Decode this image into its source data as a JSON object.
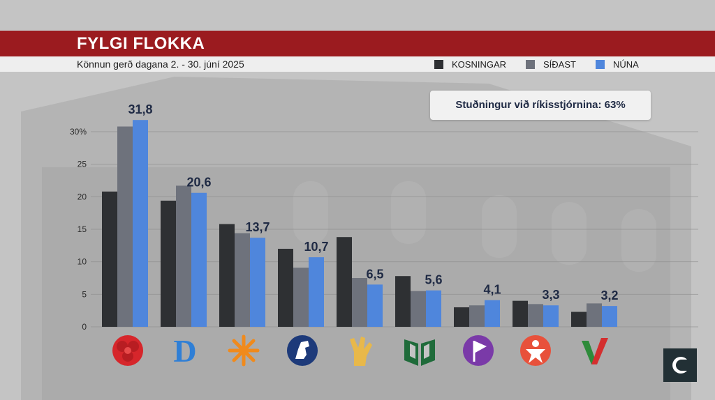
{
  "header": {
    "title": "FYLGI FLOKKA",
    "subtitle": "Könnun gerð dagana 2. - 30.  júní 2025"
  },
  "legend": [
    {
      "label": "KOSNINGAR",
      "color": "#2e3033"
    },
    {
      "label": "SÍÐAST",
      "color": "#6e727c"
    },
    {
      "label": "NÚNA",
      "color": "#4f86dc"
    }
  ],
  "support": {
    "text": "Stuðningur við ríkisstjórnina: 63%"
  },
  "chart_data": {
    "type": "bar",
    "ylim": [
      0,
      33
    ],
    "ytick_values": [
      0,
      5,
      10,
      15,
      20,
      25,
      30
    ],
    "ytick_labels": [
      "0",
      "5",
      "10",
      "15",
      "20",
      "25",
      "30%"
    ],
    "grid": true,
    "legend_position": "top-right",
    "categories": [
      "rose-icon",
      "d-letter-icon",
      "sun-icon",
      "horse-icon",
      "hand-icon",
      "book-icon",
      "pirate-flag-icon",
      "person-star-icon",
      "check-v-icon"
    ],
    "series": [
      {
        "name": "KOSNINGAR",
        "color": "#2e3033",
        "values": [
          20.8,
          19.4,
          15.8,
          12.0,
          13.8,
          7.8,
          3.0,
          4.0,
          2.3
        ]
      },
      {
        "name": "SÍÐAST",
        "color": "#6e727c",
        "values": [
          30.8,
          21.7,
          14.4,
          9.1,
          7.5,
          5.5,
          3.3,
          3.5,
          3.6
        ]
      },
      {
        "name": "NÚNA",
        "color": "#4f86dc",
        "values": [
          31.8,
          20.6,
          13.7,
          10.7,
          6.5,
          5.6,
          4.1,
          3.3,
          3.2
        ]
      }
    ],
    "data_labels": [
      "31,8",
      "20,6",
      "13,7",
      "10,7",
      "6,5",
      "5,6",
      "4,1",
      "3,3",
      "3,2"
    ]
  }
}
